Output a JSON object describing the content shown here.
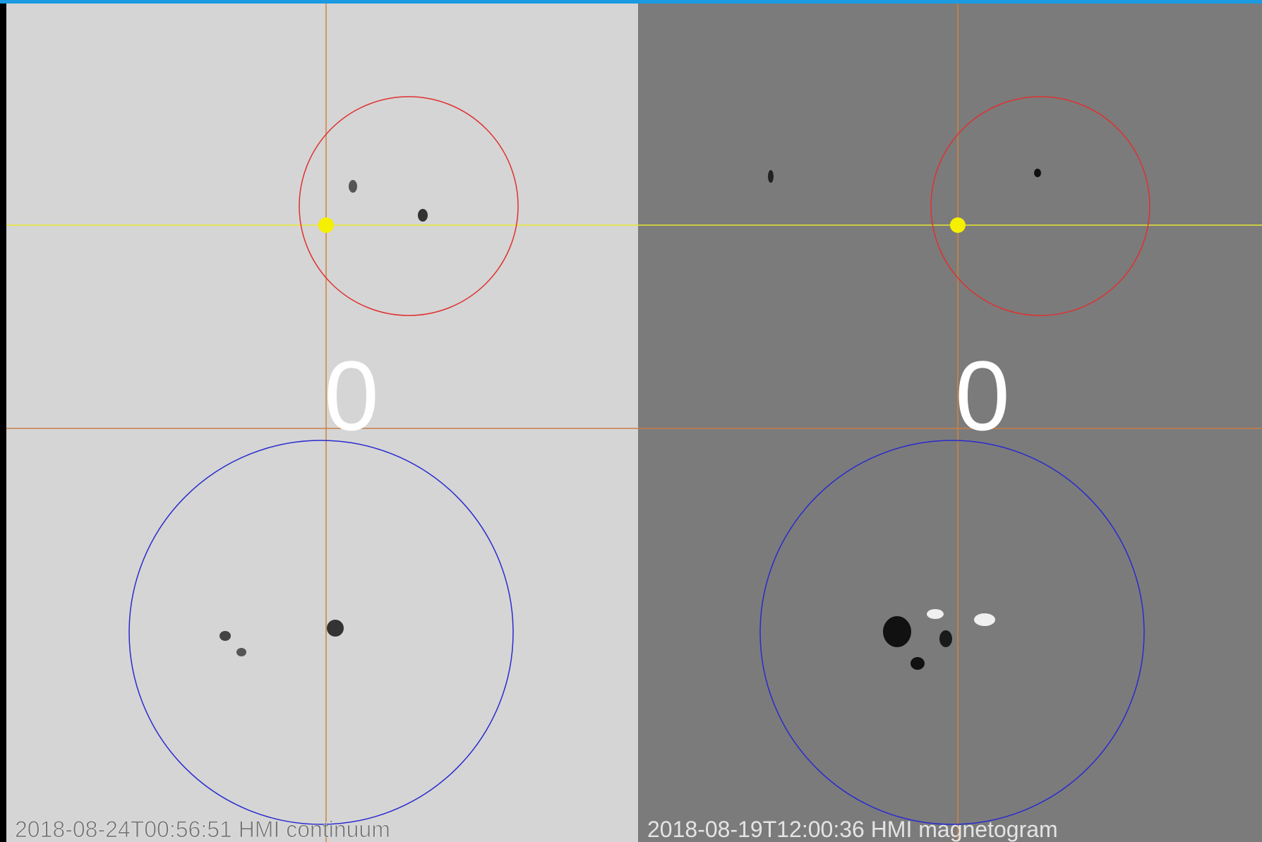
{
  "panels": [
    {
      "label": "0",
      "caption": "2018-08-24T00:56:51 HMI continuum"
    },
    {
      "label": "0",
      "caption": "2018-08-19T12:00:36 HMI magnetogram"
    }
  ]
}
